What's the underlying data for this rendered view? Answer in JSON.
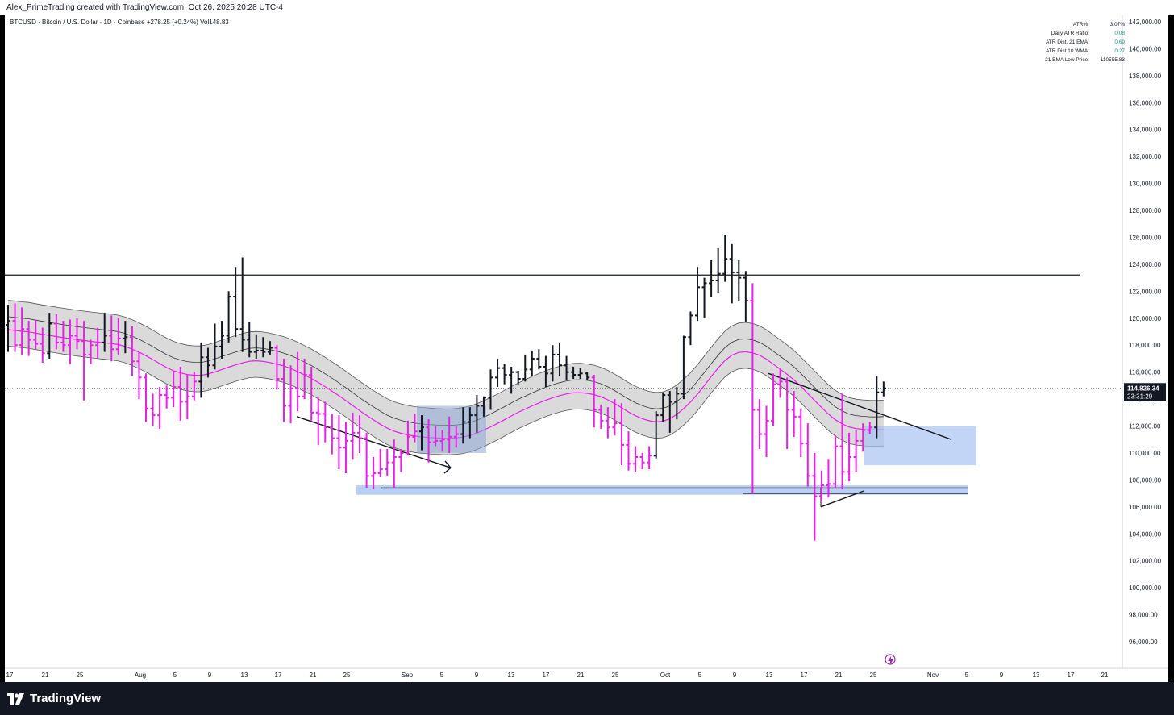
{
  "header": {
    "credit": "Alex_PrimeTrading created with TradingView.com, Oct 26, 2025 20:28 UTC-4"
  },
  "symbol_line": {
    "name": "BTCUSD · Bitcoin / U.S. Dollar · 1D · Coinbase",
    "change": "+278.25 (+0.24%)",
    "volume": "Vol148.83"
  },
  "info_table": [
    {
      "label": "ATR%:",
      "value": "3.07%",
      "color": "#131722"
    },
    {
      "label": "Daily ATR Ratio:",
      "value": "0.08",
      "color": "#089981"
    },
    {
      "label": "ATR Dist. 21 EMA:",
      "value": "0.69",
      "color": "#089981"
    },
    {
      "label": "ATR Dist.10 WMA:",
      "value": "0.27",
      "color": "#089981"
    },
    {
      "label": "21 EMA Low Price:",
      "value": "110555.83",
      "color": "#131722"
    }
  ],
  "price_badge": {
    "price": "114,826.34",
    "countdown": "23:31:29"
  },
  "footer": {
    "logo_text": "TradingView"
  },
  "colors": {
    "up_bar": "#131722",
    "down_bar": "#e91ee8",
    "ema_line": "#e91ee8",
    "band_fill": "#d3d3d3",
    "zone_fill": "#a9c3f2"
  },
  "chart_data": {
    "type": "ohlc",
    "symbol": "BTCUSD",
    "interval": "1D",
    "x_tick_labels": [
      "17",
      "21",
      "25",
      "Aug",
      "5",
      "9",
      "13",
      "17",
      "21",
      "25",
      "Sep",
      "5",
      "9",
      "13",
      "17",
      "21",
      "25",
      "Oct",
      "5",
      "9",
      "13",
      "17",
      "21",
      "25",
      "Nov",
      "5",
      "9",
      "13",
      "17",
      "21"
    ],
    "y_tick_labels": [
      "96,000.00",
      "98,000.00",
      "100,000.00",
      "102,000.00",
      "104,000.00",
      "106,000.00",
      "108,000.00",
      "110,000.00",
      "112,000.00",
      "114,000.00",
      "116,000.00",
      "118,000.00",
      "120,000.00",
      "122,000.00",
      "124,000.00",
      "126,000.00",
      "128,000.00",
      "130,000.00",
      "132,000.00",
      "134,000.00",
      "136,000.00",
      "138,000.00",
      "140,000.00",
      "142,000.00"
    ],
    "ylim": [
      95000,
      142500
    ],
    "current_price": 114826.34,
    "resistance_level": 123200,
    "support_level": 107400,
    "bars": [
      {
        "o": 119500,
        "h": 121000,
        "l": 117500,
        "c": 119800
      },
      {
        "o": 119800,
        "h": 121100,
        "l": 117500,
        "c": 118000
      },
      {
        "o": 118000,
        "h": 120800,
        "l": 117300,
        "c": 119200
      },
      {
        "o": 119200,
        "h": 119800,
        "l": 117200,
        "c": 118400
      },
      {
        "o": 118400,
        "h": 119900,
        "l": 117700,
        "c": 118100
      },
      {
        "o": 118100,
        "h": 119300,
        "l": 116700,
        "c": 117400
      },
      {
        "o": 117400,
        "h": 120400,
        "l": 117000,
        "c": 119600
      },
      {
        "o": 119600,
        "h": 120300,
        "l": 117700,
        "c": 118200
      },
      {
        "o": 118200,
        "h": 119800,
        "l": 117500,
        "c": 118000
      },
      {
        "o": 118000,
        "h": 119900,
        "l": 116600,
        "c": 118700
      },
      {
        "o": 118700,
        "h": 120000,
        "l": 117700,
        "c": 118300
      },
      {
        "o": 118300,
        "h": 119800,
        "l": 113900,
        "c": 117300
      },
      {
        "o": 117300,
        "h": 118400,
        "l": 116600,
        "c": 118000
      },
      {
        "o": 118000,
        "h": 119300,
        "l": 117000,
        "c": 118200
      },
      {
        "o": 118200,
        "h": 120400,
        "l": 117500,
        "c": 118700
      },
      {
        "o": 118700,
        "h": 120200,
        "l": 116800,
        "c": 117700
      },
      {
        "o": 117700,
        "h": 120000,
        "l": 117300,
        "c": 118500
      },
      {
        "o": 118500,
        "h": 119800,
        "l": 117400,
        "c": 118600
      },
      {
        "o": 118600,
        "h": 119400,
        "l": 115700,
        "c": 116800
      },
      {
        "o": 116800,
        "h": 117500,
        "l": 114000,
        "c": 115600
      },
      {
        "o": 115600,
        "h": 115900,
        "l": 112300,
        "c": 113300
      },
      {
        "o": 113300,
        "h": 114400,
        "l": 112000,
        "c": 112800
      },
      {
        "o": 112800,
        "h": 114900,
        "l": 111800,
        "c": 114300
      },
      {
        "o": 114300,
        "h": 115000,
        "l": 113300,
        "c": 114100
      },
      {
        "o": 114100,
        "h": 116100,
        "l": 113400,
        "c": 114900
      },
      {
        "o": 114900,
        "h": 116400,
        "l": 112400,
        "c": 113800
      },
      {
        "o": 113800,
        "h": 115800,
        "l": 112500,
        "c": 114200
      },
      {
        "o": 114200,
        "h": 116000,
        "l": 113900,
        "c": 115300
      },
      {
        "o": 115300,
        "h": 118200,
        "l": 114100,
        "c": 117100
      },
      {
        "o": 117100,
        "h": 117800,
        "l": 115600,
        "c": 116500
      },
      {
        "o": 116500,
        "h": 119600,
        "l": 116200,
        "c": 117900
      },
      {
        "o": 117900,
        "h": 119800,
        "l": 117000,
        "c": 118700
      },
      {
        "o": 118700,
        "h": 122000,
        "l": 118200,
        "c": 121600
      },
      {
        "o": 121600,
        "h": 123800,
        "l": 118600,
        "c": 119200
      },
      {
        "o": 119200,
        "h": 124500,
        "l": 117500,
        "c": 118400
      },
      {
        "o": 118400,
        "h": 119700,
        "l": 117100,
        "c": 117500
      },
      {
        "o": 117500,
        "h": 118800,
        "l": 117000,
        "c": 117600
      },
      {
        "o": 117600,
        "h": 118600,
        "l": 117100,
        "c": 117500
      },
      {
        "o": 117500,
        "h": 118300,
        "l": 117300,
        "c": 117800
      },
      {
        "o": 117800,
        "h": 118000,
        "l": 114700,
        "c": 115500
      },
      {
        "o": 115500,
        "h": 117000,
        "l": 112300,
        "c": 113500
      },
      {
        "o": 113500,
        "h": 116500,
        "l": 112200,
        "c": 114800
      },
      {
        "o": 114800,
        "h": 117500,
        "l": 113100,
        "c": 114200
      },
      {
        "o": 114200,
        "h": 117000,
        "l": 114000,
        "c": 115800
      },
      {
        "o": 115800,
        "h": 116400,
        "l": 112400,
        "c": 113000
      },
      {
        "o": 113000,
        "h": 114100,
        "l": 110600,
        "c": 112900
      },
      {
        "o": 112900,
        "h": 113800,
        "l": 110800,
        "c": 111900
      },
      {
        "o": 111900,
        "h": 112900,
        "l": 109900,
        "c": 111100
      },
      {
        "o": 111100,
        "h": 112800,
        "l": 108800,
        "c": 110400
      },
      {
        "o": 110400,
        "h": 112300,
        "l": 108500,
        "c": 110900
      },
      {
        "o": 110900,
        "h": 113000,
        "l": 109500,
        "c": 111500
      },
      {
        "o": 111500,
        "h": 112800,
        "l": 110000,
        "c": 111100
      },
      {
        "o": 111100,
        "h": 111500,
        "l": 107400,
        "c": 108300
      },
      {
        "o": 108300,
        "h": 109700,
        "l": 107300,
        "c": 108500
      },
      {
        "o": 108500,
        "h": 110300,
        "l": 108200,
        "c": 108800
      },
      {
        "o": 108800,
        "h": 110300,
        "l": 108300,
        "c": 109300
      },
      {
        "o": 109300,
        "h": 111000,
        "l": 107400,
        "c": 109700
      },
      {
        "o": 109700,
        "h": 110300,
        "l": 108600,
        "c": 110000
      },
      {
        "o": 110000,
        "h": 112400,
        "l": 109800,
        "c": 111200
      },
      {
        "o": 111200,
        "h": 112900,
        "l": 110800,
        "c": 111600
      },
      {
        "o": 111600,
        "h": 112800,
        "l": 110200,
        "c": 111900
      },
      {
        "o": 111900,
        "h": 112500,
        "l": 109300,
        "c": 110800
      },
      {
        "o": 110800,
        "h": 112000,
        "l": 110500,
        "c": 110900
      },
      {
        "o": 110900,
        "h": 111700,
        "l": 110100,
        "c": 111000
      },
      {
        "o": 111000,
        "h": 112700,
        "l": 110000,
        "c": 111200
      },
      {
        "o": 111200,
        "h": 112000,
        "l": 110400,
        "c": 111400
      },
      {
        "o": 111400,
        "h": 113400,
        "l": 110700,
        "c": 112300
      },
      {
        "o": 112300,
        "h": 113400,
        "l": 111100,
        "c": 112800
      },
      {
        "o": 112800,
        "h": 114300,
        "l": 111500,
        "c": 113500
      },
      {
        "o": 113500,
        "h": 114200,
        "l": 112700,
        "c": 114100
      },
      {
        "o": 114100,
        "h": 116200,
        "l": 113200,
        "c": 115600
      },
      {
        "o": 115600,
        "h": 117000,
        "l": 114900,
        "c": 116300
      },
      {
        "o": 116300,
        "h": 116600,
        "l": 115100,
        "c": 115800
      },
      {
        "o": 115800,
        "h": 116400,
        "l": 114400,
        "c": 116000
      },
      {
        "o": 116000,
        "h": 116100,
        "l": 115100,
        "c": 115500
      },
      {
        "o": 115500,
        "h": 117300,
        "l": 115300,
        "c": 116200
      },
      {
        "o": 116200,
        "h": 117600,
        "l": 115700,
        "c": 117000
      },
      {
        "o": 117000,
        "h": 117700,
        "l": 116200,
        "c": 116400
      },
      {
        "o": 116400,
        "h": 117200,
        "l": 114900,
        "c": 115900
      },
      {
        "o": 115900,
        "h": 118000,
        "l": 115300,
        "c": 117300
      },
      {
        "o": 117300,
        "h": 118200,
        "l": 115700,
        "c": 116500
      },
      {
        "o": 116500,
        "h": 117200,
        "l": 115400,
        "c": 116000
      },
      {
        "o": 116000,
        "h": 116400,
        "l": 115500,
        "c": 115800
      },
      {
        "o": 115800,
        "h": 116300,
        "l": 115500,
        "c": 115900
      },
      {
        "o": 115900,
        "h": 116000,
        "l": 115400,
        "c": 115600
      },
      {
        "o": 115600,
        "h": 115800,
        "l": 111900,
        "c": 113200
      },
      {
        "o": 113200,
        "h": 113600,
        "l": 111800,
        "c": 112400
      },
      {
        "o": 112400,
        "h": 113400,
        "l": 111100,
        "c": 111900
      },
      {
        "o": 111900,
        "h": 114000,
        "l": 111300,
        "c": 112200
      },
      {
        "o": 112200,
        "h": 113700,
        "l": 109100,
        "c": 110600
      },
      {
        "o": 110600,
        "h": 111600,
        "l": 108700,
        "c": 109200
      },
      {
        "o": 109200,
        "h": 110500,
        "l": 108600,
        "c": 109700
      },
      {
        "o": 109700,
        "h": 110000,
        "l": 108800,
        "c": 109300
      },
      {
        "o": 109300,
        "h": 110500,
        "l": 108800,
        "c": 109800
      },
      {
        "o": 109800,
        "h": 113100,
        "l": 109600,
        "c": 112800
      },
      {
        "o": 112800,
        "h": 114500,
        "l": 112300,
        "c": 114300
      },
      {
        "o": 114300,
        "h": 114600,
        "l": 111500,
        "c": 113800
      },
      {
        "o": 113800,
        "h": 114900,
        "l": 112500,
        "c": 114400
      },
      {
        "o": 114400,
        "h": 118700,
        "l": 114000,
        "c": 118600
      },
      {
        "o": 118600,
        "h": 120500,
        "l": 118000,
        "c": 120200
      },
      {
        "o": 120200,
        "h": 123800,
        "l": 119800,
        "c": 122300
      },
      {
        "o": 122300,
        "h": 123000,
        "l": 120000,
        "c": 122600
      },
      {
        "o": 122600,
        "h": 124300,
        "l": 121600,
        "c": 122800
      },
      {
        "o": 122800,
        "h": 125200,
        "l": 121900,
        "c": 123300
      },
      {
        "o": 123300,
        "h": 126200,
        "l": 122700,
        "c": 124400
      },
      {
        "o": 124400,
        "h": 125500,
        "l": 121100,
        "c": 123400
      },
      {
        "o": 123400,
        "h": 124300,
        "l": 121300,
        "c": 123000
      },
      {
        "o": 123000,
        "h": 123500,
        "l": 119700,
        "c": 121300
      },
      {
        "o": 121300,
        "h": 122600,
        "l": 107000,
        "c": 113200
      },
      {
        "o": 113200,
        "h": 114000,
        "l": 110300,
        "c": 111400
      },
      {
        "o": 111400,
        "h": 113500,
        "l": 109700,
        "c": 112400
      },
      {
        "o": 112400,
        "h": 115900,
        "l": 112000,
        "c": 115100
      },
      {
        "o": 115100,
        "h": 116200,
        "l": 114100,
        "c": 115300
      },
      {
        "o": 115300,
        "h": 115600,
        "l": 110300,
        "c": 113200
      },
      {
        "o": 113200,
        "h": 114600,
        "l": 111200,
        "c": 112700
      },
      {
        "o": 112700,
        "h": 113300,
        "l": 109700,
        "c": 110700
      },
      {
        "o": 110700,
        "h": 112200,
        "l": 107500,
        "c": 108300
      },
      {
        "o": 108300,
        "h": 110000,
        "l": 103500,
        "c": 106800
      },
      {
        "o": 106800,
        "h": 108700,
        "l": 106400,
        "c": 107600
      },
      {
        "o": 107600,
        "h": 109500,
        "l": 106700,
        "c": 107700
      },
      {
        "o": 107700,
        "h": 111300,
        "l": 107400,
        "c": 110500
      },
      {
        "o": 110500,
        "h": 114400,
        "l": 107300,
        "c": 108600
      },
      {
        "o": 108600,
        "h": 111500,
        "l": 107900,
        "c": 109700
      },
      {
        "o": 109700,
        "h": 111700,
        "l": 108600,
        "c": 110900
      },
      {
        "o": 110900,
        "h": 112200,
        "l": 110100,
        "c": 111700
      },
      {
        "o": 111700,
        "h": 112300,
        "l": 111400,
        "c": 111900
      },
      {
        "o": 111900,
        "h": 115700,
        "l": 111100,
        "c": 114500
      },
      {
        "o": 114500,
        "h": 115300,
        "l": 114200,
        "c": 114800
      }
    ]
  }
}
